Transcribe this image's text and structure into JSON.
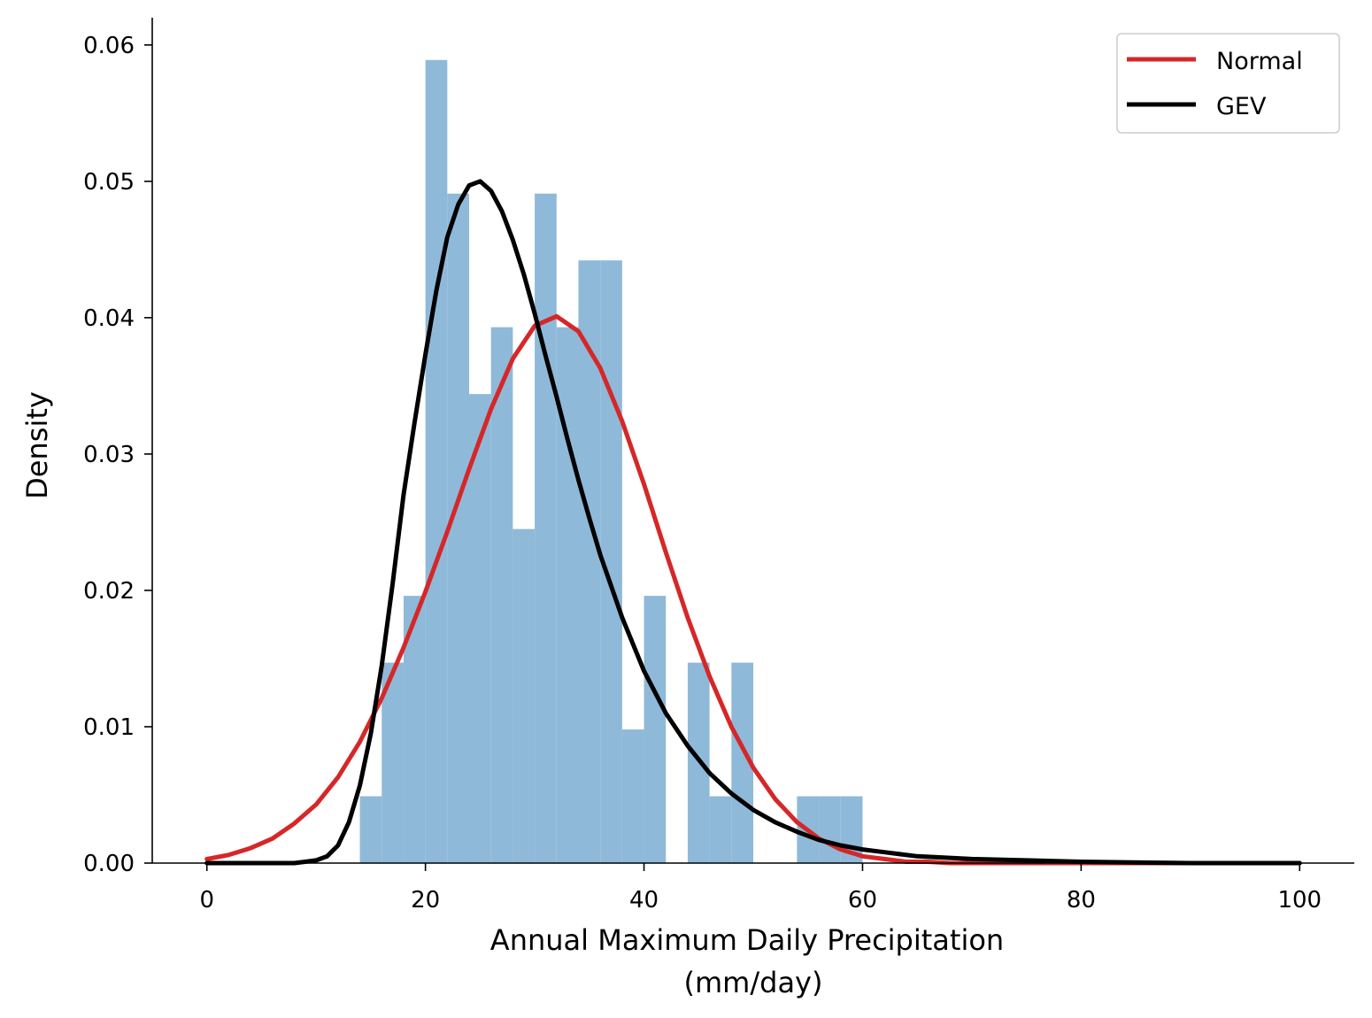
{
  "chart_data": {
    "type": "histogram-with-density-curves",
    "xlabel_line1": "Annual Maximum Daily Precipitation",
    "xlabel_line2": "(mm/day)",
    "ylabel": "Density",
    "xlim": [
      -5,
      105
    ],
    "ylim": [
      0,
      0.062
    ],
    "x_ticks": [
      0,
      20,
      40,
      60,
      80,
      100
    ],
    "y_ticks": [
      0.0,
      0.01,
      0.02,
      0.03,
      0.04,
      0.05,
      0.06
    ],
    "x_tick_labels": [
      "0",
      "20",
      "40",
      "60",
      "80",
      "100"
    ],
    "y_tick_labels": [
      "0.00",
      "0.01",
      "0.02",
      "0.03",
      "0.04",
      "0.05",
      "0.06"
    ],
    "grid": false,
    "legend_position": "top-right",
    "histogram": {
      "color": "#8fb9d8",
      "bin_width": 2,
      "bins": [
        {
          "x0": 14,
          "density": 0.0049
        },
        {
          "x0": 16,
          "density": 0.0147
        },
        {
          "x0": 18,
          "density": 0.0196
        },
        {
          "x0": 20,
          "density": 0.0589
        },
        {
          "x0": 22,
          "density": 0.0491
        },
        {
          "x0": 24,
          "density": 0.0344
        },
        {
          "x0": 26,
          "density": 0.0393
        },
        {
          "x0": 28,
          "density": 0.0245
        },
        {
          "x0": 30,
          "density": 0.0491
        },
        {
          "x0": 32,
          "density": 0.0393
        },
        {
          "x0": 34,
          "density": 0.0442
        },
        {
          "x0": 36,
          "density": 0.0442
        },
        {
          "x0": 38,
          "density": 0.0098
        },
        {
          "x0": 40,
          "density": 0.0196
        },
        {
          "x0": 42,
          "density": 0.0
        },
        {
          "x0": 44,
          "density": 0.0147
        },
        {
          "x0": 46,
          "density": 0.0049
        },
        {
          "x0": 48,
          "density": 0.0147
        },
        {
          "x0": 50,
          "density": 0.0
        },
        {
          "x0": 52,
          "density": 0.0
        },
        {
          "x0": 54,
          "density": 0.0049
        },
        {
          "x0": 56,
          "density": 0.0049
        },
        {
          "x0": 58,
          "density": 0.0049
        }
      ]
    },
    "series": [
      {
        "name": "Normal",
        "color": "#d62728",
        "x": [
          0,
          2,
          4,
          6,
          8,
          10,
          12,
          14,
          16,
          18,
          20,
          22,
          24,
          26,
          28,
          30,
          32,
          34,
          36,
          38,
          40,
          42,
          44,
          46,
          48,
          50,
          52,
          54,
          56,
          58,
          60,
          62,
          64,
          66,
          68,
          70,
          75,
          80,
          90,
          100
        ],
        "y": [
          0.0003,
          0.0006,
          0.0011,
          0.0018,
          0.0029,
          0.0043,
          0.0063,
          0.0089,
          0.0121,
          0.0158,
          0.0199,
          0.0243,
          0.0289,
          0.0333,
          0.037,
          0.0394,
          0.0401,
          0.039,
          0.0363,
          0.0324,
          0.0278,
          0.0228,
          0.018,
          0.0137,
          0.01,
          0.007,
          0.0047,
          0.003,
          0.0018,
          0.001,
          0.0005,
          0.0003,
          0.0001,
          0.0001,
          0.0,
          0.0,
          0.0,
          0.0,
          0.0,
          0.0
        ]
      },
      {
        "name": "GEV",
        "color": "#000000",
        "x": [
          0,
          5,
          8,
          9,
          10,
          11,
          12,
          13,
          14,
          15,
          16,
          17,
          18,
          19,
          20,
          21,
          22,
          23,
          24,
          25,
          26,
          27,
          28,
          29,
          30,
          31,
          32,
          33,
          34,
          35,
          36,
          38,
          40,
          42,
          44,
          46,
          48,
          50,
          52,
          54,
          56,
          58,
          60,
          62,
          65,
          70,
          75,
          80,
          90,
          100
        ],
        "y": [
          0.0,
          0.0,
          0.0,
          0.0001,
          0.0002,
          0.0005,
          0.0013,
          0.003,
          0.0057,
          0.0095,
          0.0145,
          0.0205,
          0.027,
          0.0323,
          0.0373,
          0.042,
          0.0459,
          0.0483,
          0.0497,
          0.05,
          0.0493,
          0.0478,
          0.0457,
          0.0432,
          0.0403,
          0.0372,
          0.0342,
          0.0311,
          0.0281,
          0.0253,
          0.0226,
          0.018,
          0.0141,
          0.011,
          0.0086,
          0.0066,
          0.0051,
          0.0039,
          0.003,
          0.0023,
          0.0017,
          0.0013,
          0.001,
          0.0008,
          0.0005,
          0.0003,
          0.0002,
          0.0001,
          0.0,
          0.0
        ]
      }
    ]
  }
}
